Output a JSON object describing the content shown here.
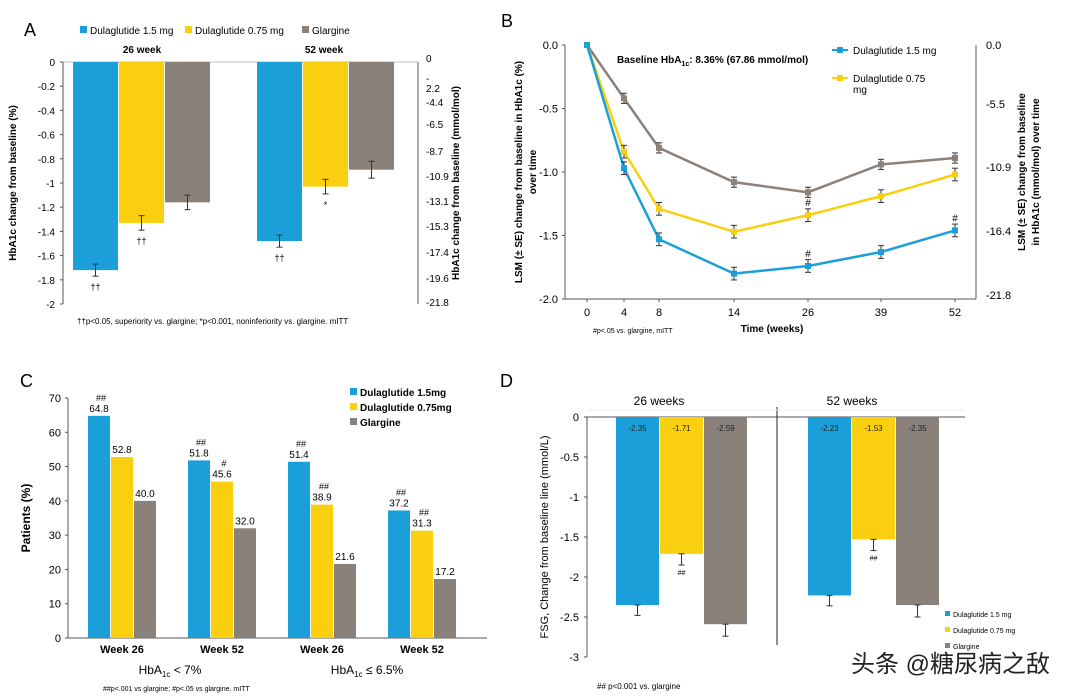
{
  "colors": {
    "blue": "#1a9fd8",
    "yellow": "#f9cf0f",
    "grey": "#8a817a",
    "axis": "#555555",
    "text": "#000000"
  },
  "watermark": "头条 @糖尿病之敌",
  "chart_data": [
    {
      "panel": "A",
      "type": "bar",
      "legend": [
        "Dulaglutide 1.5 mg",
        "Dulaglutide 0.75 mg",
        "Glargine"
      ],
      "groups": [
        "26 week",
        "52 week"
      ],
      "series": [
        {
          "name": "Dulaglutide 1.5 mg",
          "values": [
            -1.72,
            -1.48
          ],
          "errors": [
            0.05,
            0.05
          ],
          "markers": [
            "††",
            "††"
          ]
        },
        {
          "name": "Dulaglutide 0.75 mg",
          "values": [
            -1.33,
            -1.03
          ],
          "errors": [
            0.06,
            0.06
          ],
          "markers": [
            "††",
            "*"
          ]
        },
        {
          "name": "Glargine",
          "values": [
            -1.16,
            -0.89
          ],
          "errors": [
            0.06,
            0.07
          ],
          "markers": [
            "",
            ""
          ]
        }
      ],
      "ylim": [
        -2,
        0
      ],
      "yticks": [
        "0",
        "-0.2",
        "-0.4",
        "-0.6",
        "-0.8",
        "-1",
        "-1.2",
        "-1.4",
        "-1.6",
        "-1.8",
        "-2"
      ],
      "y2ticks": [
        "0",
        "-",
        "2.2",
        "-4.4",
        "-6.5",
        "-8.7",
        "-10.9",
        "-13.1",
        "-15.3",
        "-17.4",
        "-19.6",
        "-21.8"
      ],
      "ylabel": "HbA1c change from baseline (%)",
      "y2label": "HbA1c change from baseline (mmol/mol)",
      "footnote": "††p<0.05, superiority vs. glargine; *p<0.001, noninferiority vs. glargine. mITT"
    },
    {
      "panel": "B",
      "type": "line",
      "x": [
        0,
        4,
        8,
        14,
        26,
        39,
        52
      ],
      "xticks": [
        "0",
        "4",
        "8",
        "14",
        "26",
        "39",
        "52"
      ],
      "series": [
        {
          "name": "Dulaglutide 1.5 mg",
          "values": [
            0,
            -0.97,
            -1.53,
            -1.8,
            -1.74,
            -1.63,
            -1.46
          ],
          "markers": [
            "",
            "",
            "",
            "",
            "#",
            "",
            "#"
          ]
        },
        {
          "name": "Dulaglutide 0.75 mg",
          "values": [
            0,
            -0.84,
            -1.29,
            -1.47,
            -1.34,
            -1.19,
            -1.02
          ],
          "markers": [
            "",
            "",
            "",
            "",
            "#",
            "",
            ""
          ]
        },
        {
          "name": "Glargine",
          "values": [
            0,
            -0.42,
            -0.81,
            -1.08,
            -1.16,
            -0.94,
            -0.89
          ],
          "markers": [
            "",
            "",
            "",
            "",
            "",
            "",
            ""
          ]
        }
      ],
      "legend": [
        "Dulaglutide 1.5 mg",
        "Dulaglutide 0.75",
        "mg"
      ],
      "ylim": [
        -2.0,
        0.0
      ],
      "yticks": [
        "0.0",
        "-0.5",
        "-1.0",
        "-1.5",
        "-2.0"
      ],
      "y2ticks": [
        "0.0",
        "-5.5",
        "-10.9",
        "-16.4",
        "-21.8"
      ],
      "ylabel": "LSM (± SE) change from baseline in HbA1c (%)",
      "ylabel2": "over time",
      "y2label": "LSM (± SE) change from baseline",
      "y2label2": "in HbA1c (mmol/mol)  over time",
      "xlabel": "Time (weeks)",
      "baseline_main": "Baseline HbA",
      "baseline_sub": "1c",
      "baseline_rest": ": 8.36% (67.86 mmol/mol)",
      "footnote": "#p<.05 vs. glargine, mITT"
    },
    {
      "panel": "C",
      "type": "bar",
      "categories": [
        "Week 26",
        "Week 52",
        "Week 26",
        "Week 52"
      ],
      "group_labels": [
        {
          "main": "HbA",
          "sub": "1c",
          "rest": " < 7%"
        },
        {
          "main": "HbA",
          "sub": "1c",
          "rest": " ≤ 6.5%"
        }
      ],
      "series": [
        {
          "name": "Dulaglutide 1.5mg",
          "values": [
            64.8,
            51.8,
            51.4,
            37.2
          ],
          "labels": [
            "64.8",
            "51.8",
            "51.4",
            "37.2"
          ],
          "markers": [
            "##",
            "##",
            "##",
            "##"
          ]
        },
        {
          "name": "Dulaglutide 0.75mg",
          "values": [
            52.8,
            45.6,
            38.9,
            31.3
          ],
          "labels": [
            "52.8",
            "45.6",
            "38.9",
            "31.3"
          ],
          "markers": [
            "",
            "#",
            "##",
            "##"
          ]
        },
        {
          "name": "Glargine",
          "values": [
            40.0,
            32.0,
            21.6,
            17.2
          ],
          "labels": [
            "40.0",
            "32.0",
            "21.6",
            "17.2"
          ],
          "markers": [
            "",
            "",
            "",
            ""
          ]
        }
      ],
      "ylim": [
        0,
        70
      ],
      "yticks": [
        "0",
        "10",
        "20",
        "30",
        "40",
        "50",
        "60",
        "70"
      ],
      "ylabel": "Patients (%)",
      "footnote": "##p<.001 vs glargine; #p<.05 vs glargine.  mITT"
    },
    {
      "panel": "D",
      "type": "bar",
      "groups": [
        "26 weeks",
        "52 weeks"
      ],
      "series": [
        {
          "name": "Dulaglutide 1.5 mg",
          "values": [
            -2.35,
            -2.23
          ],
          "labels": [
            "-2.35",
            "-2.23"
          ],
          "markers": [
            "",
            ""
          ]
        },
        {
          "name": "Dulaglutide 0.75 mg",
          "values": [
            -1.71,
            -1.53
          ],
          "labels": [
            "-1.71",
            "-1.53"
          ],
          "markers": [
            "##",
            "##"
          ]
        },
        {
          "name": "Glargine",
          "values": [
            -2.59,
            -2.35
          ],
          "labels": [
            "-2.59",
            "-2.35"
          ],
          "markers": [
            "",
            ""
          ]
        }
      ],
      "ylim": [
        -3,
        0
      ],
      "yticks": [
        "0",
        "-0.5",
        "-1",
        "-1.5",
        "-2",
        "-2.5",
        "-3"
      ],
      "ylabel": "FSG, Change from baseline line (mmol/L)",
      "legend": [
        "Dulaglutide 1.5 mg",
        "Dulaglutide 0.75 mg",
        "Glargine"
      ],
      "footnote": "## p<0.001 vs. glargine"
    }
  ]
}
